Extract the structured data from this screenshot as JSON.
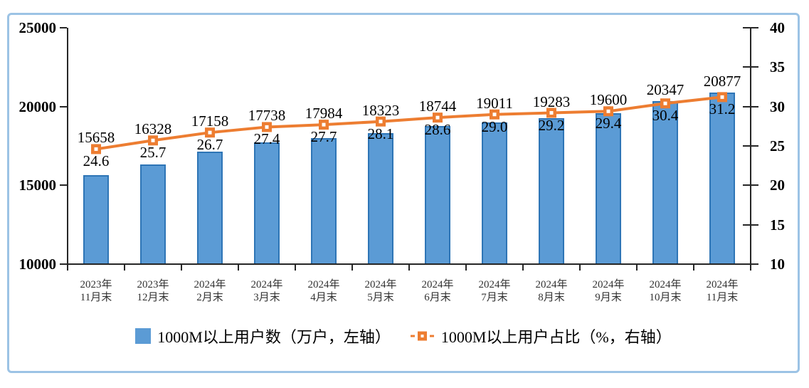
{
  "chart_data": {
    "type": "combo-bar-line",
    "title": "",
    "categories": [
      [
        "2023年",
        "11月末"
      ],
      [
        "2023年",
        "12月末"
      ],
      [
        "2024年",
        "2月末"
      ],
      [
        "2024年",
        "3月末"
      ],
      [
        "2024年",
        "4月末"
      ],
      [
        "2024年",
        "5月末"
      ],
      [
        "2024年",
        "6月末"
      ],
      [
        "2024年",
        "7月末"
      ],
      [
        "2024年",
        "8月末"
      ],
      [
        "2024年",
        "9月末"
      ],
      [
        "2024年",
        "10月末"
      ],
      [
        "2024年",
        "11月末"
      ]
    ],
    "series": [
      {
        "name": "1000M以上用户数（万户，左轴）",
        "type": "bar",
        "axis": "left",
        "values": [
          15658,
          16328,
          17158,
          17738,
          17984,
          18323,
          18744,
          19011,
          19283,
          19600,
          20347,
          20877
        ],
        "labels": [
          "15658",
          "16328",
          "17158",
          "17738",
          "17984",
          "18323",
          "18744",
          "19011",
          "19283",
          "19600",
          "20347",
          "20877"
        ]
      },
      {
        "name": "1000M以上用户占比（%，右轴）",
        "type": "line",
        "axis": "right",
        "values": [
          24.6,
          25.7,
          26.7,
          27.4,
          27.7,
          28.1,
          28.6,
          29.0,
          29.2,
          29.4,
          30.4,
          31.2
        ],
        "labels": [
          "24.6",
          "25.7",
          "26.7",
          "27.4",
          "27.7",
          "28.1",
          "28.6",
          "29.0",
          "29.2",
          "29.4",
          "30.4",
          "31.2"
        ]
      }
    ],
    "left_axis": {
      "min": 10000,
      "max": 25000,
      "ticks": [
        "25000",
        "20000",
        "15000",
        "10000"
      ]
    },
    "right_axis": {
      "min": 10,
      "max": 40,
      "ticks": [
        "40",
        "35",
        "30",
        "25",
        "20",
        "15",
        "10"
      ]
    },
    "gridlines": false,
    "legend_position": "bottom",
    "colors": {
      "bar_fill": "#5B9BD5",
      "bar_border": "#2E75B6",
      "line": "#ED7D31",
      "marker_fill": "#ED7D31",
      "marker_center": "#FFFFFF",
      "axis": "#262626",
      "text": "#000000",
      "frame_border": "#9CC3E5"
    }
  }
}
